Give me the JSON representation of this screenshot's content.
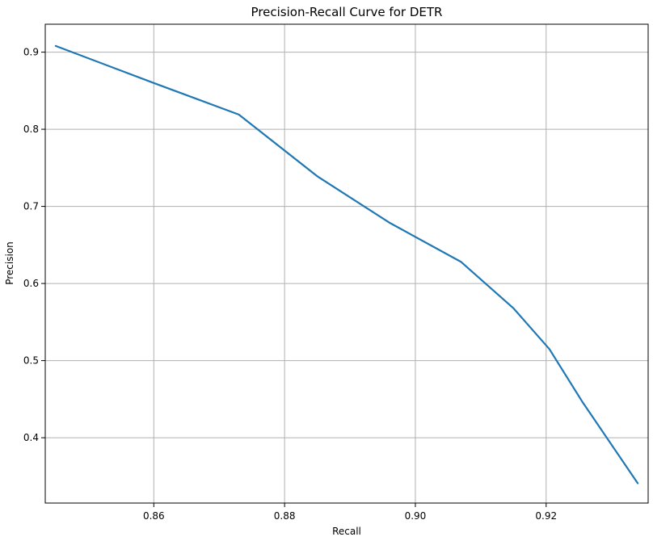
{
  "chart_data": {
    "type": "line",
    "title": "Precision-Recall Curve for DETR",
    "xlabel": "Recall",
    "ylabel": "Precision",
    "xlim": [
      0.8434,
      0.9356
    ],
    "ylim": [
      0.3153,
      0.9362
    ],
    "xticks": [
      0.86,
      0.88,
      0.9,
      0.92
    ],
    "xtick_labels": [
      "0.86",
      "0.88",
      "0.90",
      "0.92"
    ],
    "yticks": [
      0.4,
      0.5,
      0.6,
      0.7,
      0.8,
      0.9
    ],
    "ytick_labels": [
      "0.4",
      "0.5",
      "0.6",
      "0.7",
      "0.8",
      "0.9"
    ],
    "grid": true,
    "series": [
      {
        "color": "#1f77b4",
        "points": [
          {
            "x": 0.845,
            "y": 0.908
          },
          {
            "x": 0.86,
            "y": 0.86
          },
          {
            "x": 0.873,
            "y": 0.819
          },
          {
            "x": 0.885,
            "y": 0.739
          },
          {
            "x": 0.896,
            "y": 0.679
          },
          {
            "x": 0.907,
            "y": 0.628
          },
          {
            "x": 0.915,
            "y": 0.568
          },
          {
            "x": 0.9205,
            "y": 0.515
          },
          {
            "x": 0.9255,
            "y": 0.447
          },
          {
            "x": 0.934,
            "y": 0.341
          }
        ]
      }
    ]
  }
}
